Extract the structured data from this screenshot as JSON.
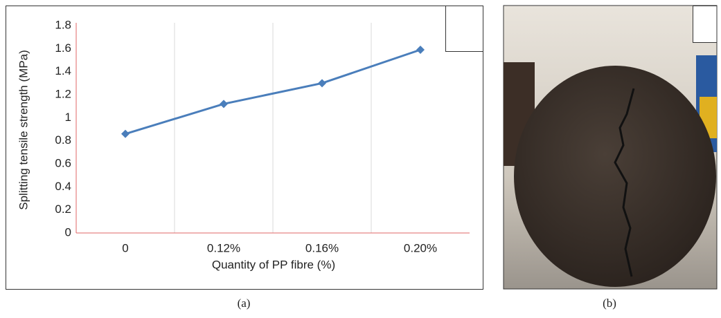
{
  "chart_data": {
    "type": "line",
    "x_label": "Quantity of PP fibre (%)",
    "y_label": "Splitting tensile strength (MPa)",
    "categories": [
      "0",
      "0.12%",
      "0.16%",
      "0.20%"
    ],
    "series": [
      {
        "color": "#4a7ebb",
        "values": [
          0.86,
          1.12,
          1.3,
          1.59
        ]
      }
    ],
    "ylim": [
      0,
      1.8
    ],
    "yticks": [
      0,
      0.2,
      0.4,
      0.6,
      0.8,
      1,
      1.2,
      1.4,
      1.6,
      1.8
    ],
    "grid": true,
    "axis_color": "#e06666"
  },
  "captions": [
    "(a)",
    "(b)"
  ]
}
